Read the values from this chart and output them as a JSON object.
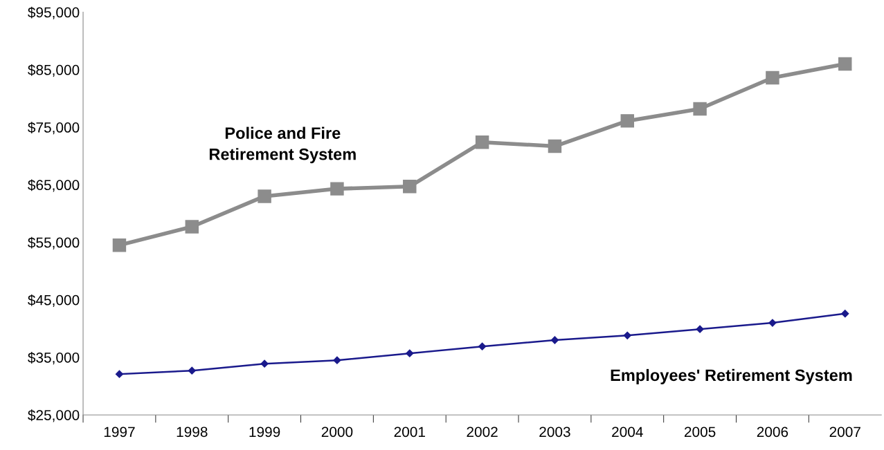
{
  "chart_data": {
    "type": "line",
    "categories": [
      "1997",
      "1998",
      "1999",
      "2000",
      "2001",
      "2002",
      "2003",
      "2004",
      "2005",
      "2006",
      "2007"
    ],
    "series": [
      {
        "name": "Police and Fire\nRetirement System",
        "color": "#8c8c8c",
        "marker": "square",
        "values": [
          54500,
          57700,
          63000,
          64300,
          64700,
          72400,
          71700,
          76100,
          78200,
          83600,
          86000
        ]
      },
      {
        "name": "Employees' Retirement System",
        "color": "#1a1a8c",
        "marker": "diamond",
        "values": [
          32100,
          32700,
          33900,
          34500,
          35700,
          36900,
          38000,
          38800,
          39900,
          41000,
          42600
        ]
      }
    ],
    "ylim": [
      25000,
      95000
    ],
    "yticks": [
      {
        "value": 25000,
        "label": "$25,000"
      },
      {
        "value": 35000,
        "label": "$35,000"
      },
      {
        "value": 45000,
        "label": "$45,000"
      },
      {
        "value": 55000,
        "label": "$55,000"
      },
      {
        "value": 65000,
        "label": "$65,000"
      },
      {
        "value": 75000,
        "label": "$75,000"
      },
      {
        "value": 85000,
        "label": "$85,000"
      },
      {
        "value": 95000,
        "label": "$95,000"
      }
    ],
    "grid": false,
    "legend": false
  }
}
